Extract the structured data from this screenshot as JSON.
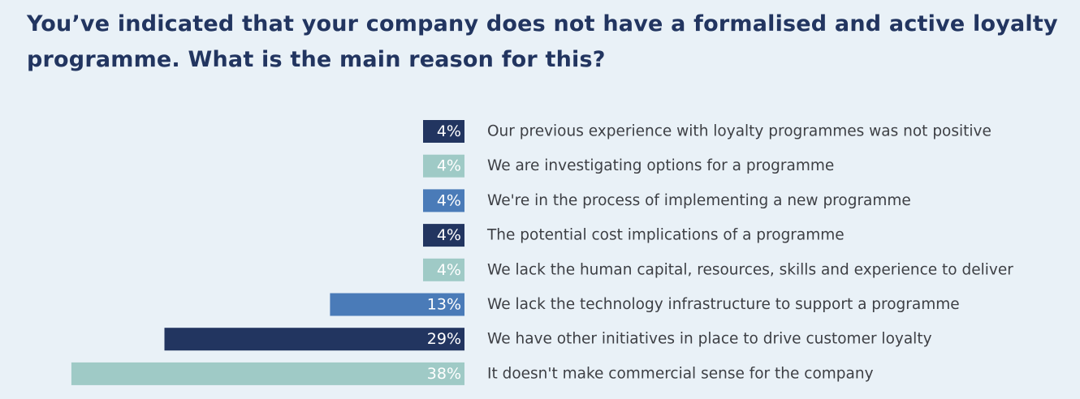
{
  "title": "You’ve indicated that your company does not have a formalised and active loyalty programme. What is the main reason for this?",
  "colors": {
    "background": "#e9f1f7",
    "title": "#223560",
    "label_text": "#3d3f44",
    "bar_dark_navy": "#223560",
    "bar_light_teal": "#9fcac6",
    "bar_medium_blue": "#4a7bb8"
  },
  "chart_data": {
    "type": "bar",
    "orientation": "horizontal",
    "unit": "%",
    "xlim": [
      0,
      38
    ],
    "grid": false,
    "categories": [
      "Our previous experience with loyalty programmes was not positive",
      "We are investigating options for a programme",
      "We're in the process of implementing a new programme",
      "The potential cost implications of a programme",
      "We lack the human capital, resources, skills and experience to deliver",
      "We lack the technology infrastructure to support a programme",
      "We have other initiatives in place to drive customer loyalty",
      "It doesn't make commercial sense for the company"
    ],
    "values": [
      4,
      4,
      4,
      4,
      4,
      13,
      29,
      38
    ],
    "value_labels": [
      "4%",
      "4%",
      "4%",
      "4%",
      "4%",
      "13%",
      "29%",
      "38%"
    ],
    "bar_colors": [
      "#223560",
      "#9fcac6",
      "#4a7bb8",
      "#223560",
      "#9fcac6",
      "#4a7bb8",
      "#223560",
      "#9fcac6"
    ]
  }
}
